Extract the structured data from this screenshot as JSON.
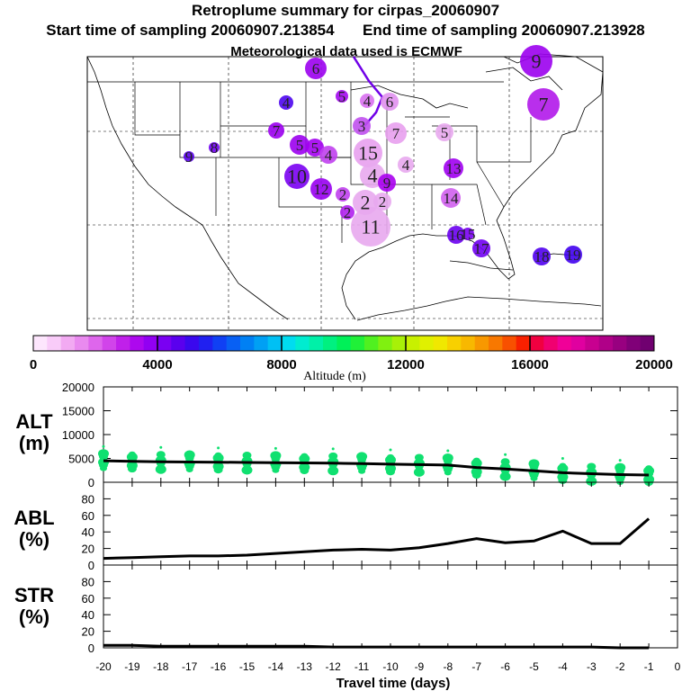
{
  "header": {
    "title": "Retroplume summary for cirpas_20060907",
    "start_label": "Start time of sampling 20060907.213854",
    "end_label": "End time of sampling 20060907.213928",
    "met_label": "Meteorological data used is ECMWF"
  },
  "colorbar": {
    "tick_labels": [
      "0",
      "4000",
      "8000",
      "12000",
      "16000",
      "20000"
    ],
    "min": 0,
    "max": 20000,
    "title": "Altitude (m)",
    "colors": [
      "#fde6fd",
      "#f9ccf9",
      "#f2aaf2",
      "#e98aef",
      "#de66ec",
      "#d144ea",
      "#c020ea",
      "#ad08ee",
      "#9200f2",
      "#7a00f2",
      "#5a00ee",
      "#3a08ee",
      "#2020f0",
      "#1040f4",
      "#0860f4",
      "#0080f4",
      "#00a0f4",
      "#00c0f4",
      "#00dcf0",
      "#00ecd0",
      "#00f0a8",
      "#00f080",
      "#00f058",
      "#20f038",
      "#50f020",
      "#80f010",
      "#a8f008",
      "#c8f000",
      "#e0f000",
      "#f0e800",
      "#f8d000",
      "#f8b800",
      "#f89800",
      "#f87800",
      "#f85000",
      "#f82000",
      "#f00040",
      "#f00070",
      "#f00098",
      "#e000a0",
      "#c80090",
      "#b00088",
      "#980080",
      "#800078",
      "#700070"
    ]
  },
  "map_labels": [
    {
      "t": "9",
      "c": "#9b00ee"
    },
    {
      "t": "6",
      "c": "#9b00ee"
    },
    {
      "t": "5",
      "c": "#a30aee"
    },
    {
      "t": "4",
      "c": "#d870f0"
    },
    {
      "t": "6",
      "c": "#e090ee"
    },
    {
      "t": "7",
      "c": "#b118ea"
    },
    {
      "t": "4",
      "c": "#4d06ee"
    },
    {
      "t": "7",
      "c": "#9b00ee"
    },
    {
      "t": "7",
      "c": "#e8a0ee"
    },
    {
      "t": "5",
      "c": "#e8a8ee"
    },
    {
      "t": "3",
      "c": "#c050ee"
    },
    {
      "t": "5",
      "c": "#9b00ee"
    },
    {
      "t": "8",
      "c": "#7000f2"
    },
    {
      "t": "9",
      "c": "#5a00ee"
    },
    {
      "t": "5",
      "c": "#a300f0"
    },
    {
      "t": "4",
      "c": "#c040ee"
    },
    {
      "t": "15",
      "c": "#e8a0ee"
    },
    {
      "t": "4",
      "c": "#e8a8ee"
    },
    {
      "t": "13",
      "c": "#a000f0"
    },
    {
      "t": "10",
      "c": "#7a00f2"
    },
    {
      "t": "12",
      "c": "#9800f0"
    },
    {
      "t": "2",
      "c": "#c040ee"
    },
    {
      "t": "4",
      "c": "#e8a8ee"
    },
    {
      "t": "9",
      "c": "#a800ee"
    },
    {
      "t": "14",
      "c": "#d060ee"
    },
    {
      "t": "2",
      "c": "#b020ee"
    },
    {
      "t": "2",
      "c": "#e8a8ee"
    },
    {
      "t": "2",
      "c": "#e8a8ee"
    },
    {
      "t": "11",
      "c": "#e8a8ee"
    },
    {
      "t": "16",
      "c": "#6a00f0"
    },
    {
      "t": "15",
      "c": "#7a00f2"
    },
    {
      "t": "17",
      "c": "#7000f2"
    },
    {
      "t": "18",
      "c": "#5000ee"
    },
    {
      "t": "19",
      "c": "#4000ee"
    }
  ],
  "chart_data": [
    {
      "type": "scatter",
      "panel": "ALT",
      "ylabel": "ALT\n(m)",
      "ylim": [
        0,
        20000
      ],
      "yticks": [
        "20000",
        "15000",
        "10000",
        "5000",
        "0"
      ],
      "x": [
        -20,
        -19,
        -18,
        -17,
        -16,
        -15,
        -14,
        -13,
        -12,
        -11,
        -10,
        -9,
        -8,
        -7,
        -6,
        -5,
        -4,
        -3,
        -2,
        -1
      ],
      "mean_line": [
        4500,
        4400,
        4300,
        4250,
        4200,
        4150,
        4100,
        4050,
        4000,
        3900,
        3800,
        3700,
        3600,
        3100,
        2800,
        2400,
        2000,
        1800,
        1600,
        1500
      ],
      "points_color": "#10e070"
    },
    {
      "type": "line",
      "panel": "ABL",
      "ylabel": "ABL\n(%)",
      "ylim": [
        0,
        100
      ],
      "yticks": [
        "80",
        "60",
        "40",
        "20",
        "0"
      ],
      "x": [
        -20,
        -19,
        -18,
        -17,
        -16,
        -15,
        -14,
        -13,
        -12,
        -11,
        -10,
        -9,
        -8,
        -7,
        -6,
        -5,
        -4,
        -3,
        -2,
        -1
      ],
      "values": [
        8,
        9,
        10,
        11,
        11,
        12,
        14,
        16,
        18,
        19,
        18,
        21,
        26,
        32,
        27,
        29,
        41,
        26,
        26,
        56
      ]
    },
    {
      "type": "line",
      "panel": "STR",
      "ylabel": "STR\n(%)",
      "ylim": [
        0,
        100
      ],
      "yticks": [
        "80",
        "60",
        "40",
        "20",
        "0"
      ],
      "x": [
        -20,
        -19,
        -18,
        -17,
        -16,
        -15,
        -14,
        -13,
        -12,
        -11,
        -10,
        -9,
        -8,
        -7,
        -6,
        -5,
        -4,
        -3,
        -2,
        -1
      ],
      "values": [
        3,
        3,
        2,
        2,
        2,
        2,
        2,
        2,
        1,
        1,
        1,
        1,
        1,
        1,
        1,
        1,
        1,
        1,
        0,
        0
      ]
    }
  ],
  "x_axis": {
    "tick_labels": [
      "-20",
      "-19",
      "-18",
      "-17",
      "-16",
      "-15",
      "-14",
      "-13",
      "-12",
      "-11",
      "-10",
      "-9",
      "-8",
      "-7",
      "-6",
      "-5",
      "-4",
      "-3",
      "-2",
      "-1",
      "0"
    ],
    "label": "Travel time (days)"
  }
}
